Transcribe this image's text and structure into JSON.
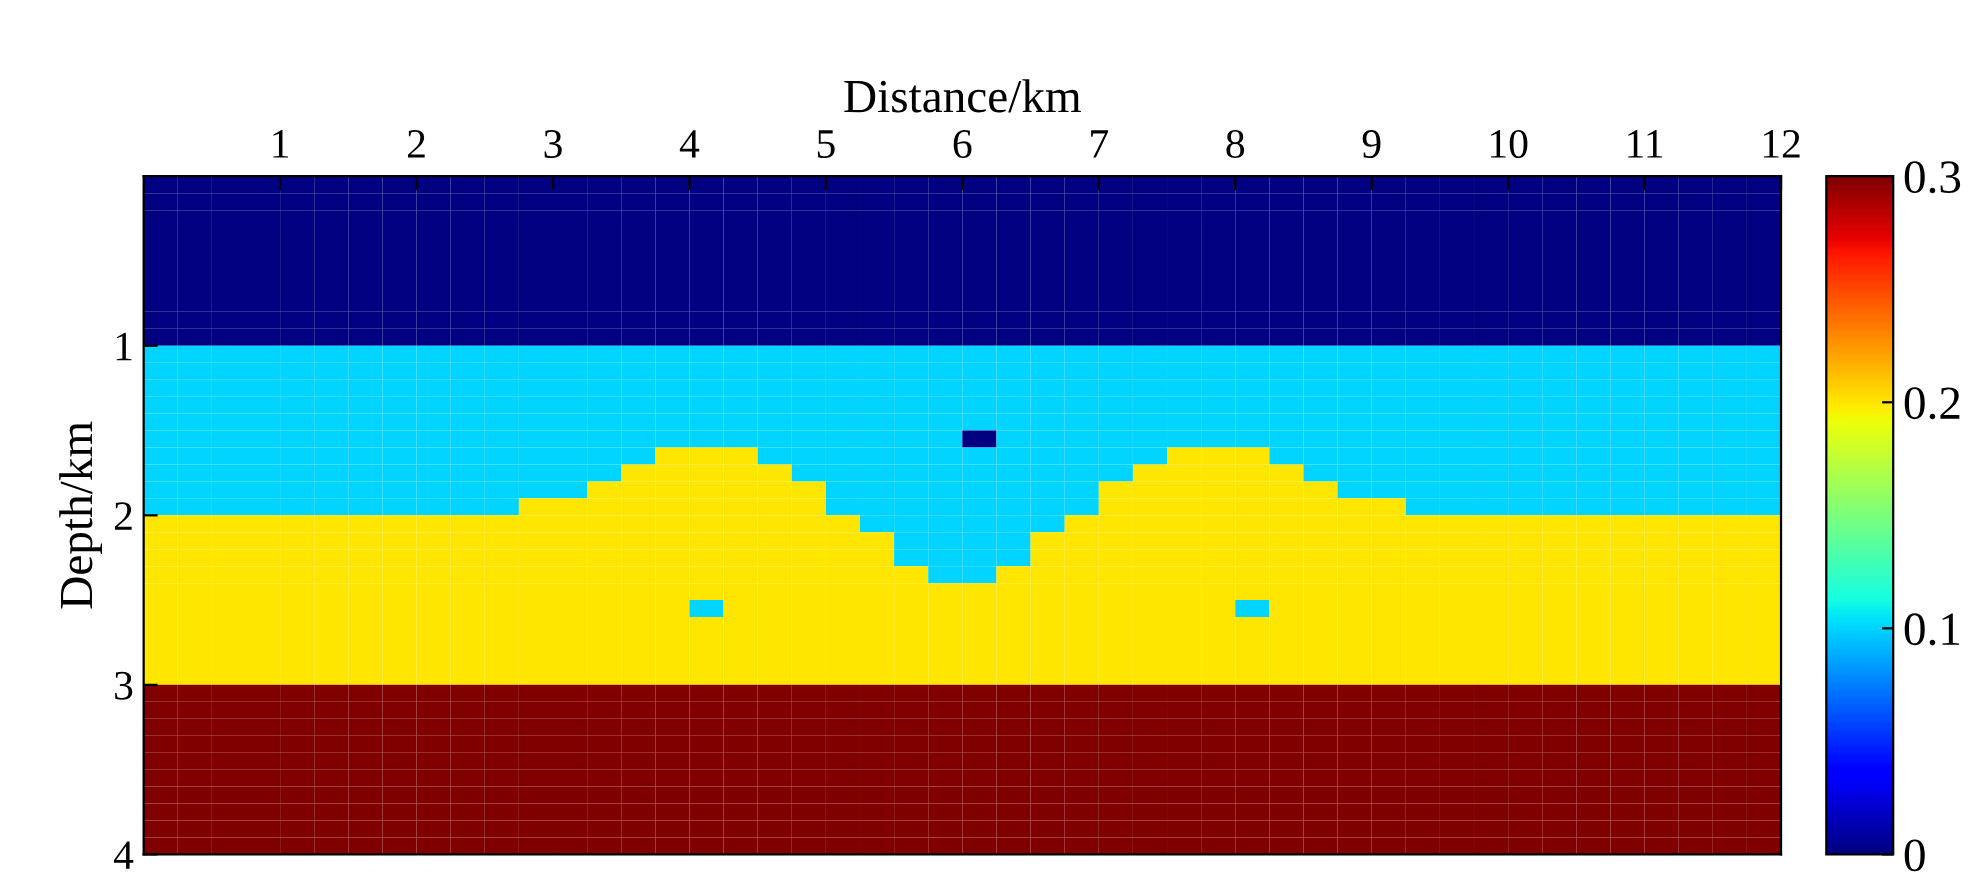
{
  "chart_data": {
    "type": "heatmap",
    "xlabel": "Distance/km",
    "ylabel": "Depth/km",
    "xlim": [
      0,
      12
    ],
    "ylim": [
      4,
      0
    ],
    "xticks": [
      1,
      2,
      3,
      4,
      5,
      6,
      7,
      8,
      9,
      10,
      11,
      12
    ],
    "yticks": [
      1,
      2,
      3,
      4
    ],
    "clim": [
      0,
      0.3
    ],
    "cticks": [
      0,
      0.1,
      0.2,
      0.3
    ],
    "cells": [
      [
        0,
        0,
        0,
        0,
        0,
        0,
        0,
        0,
        0,
        0,
        0,
        0,
        0,
        0,
        0,
        0,
        0,
        0,
        0,
        0,
        0,
        0,
        0,
        0,
        0,
        0,
        0,
        0,
        0,
        0,
        0,
        0,
        0,
        0,
        0,
        0,
        0,
        0,
        0,
        0,
        0,
        0,
        0,
        0,
        0,
        0,
        0,
        0
      ],
      [
        0,
        0,
        0,
        0,
        0,
        0,
        0,
        0,
        0,
        0,
        0,
        0,
        0,
        0,
        0,
        0,
        0,
        0,
        0,
        0,
        0,
        0,
        0,
        0,
        0,
        0,
        0,
        0,
        0,
        0,
        0,
        0,
        0,
        0,
        0,
        0,
        0,
        0,
        0,
        0,
        0,
        0,
        0,
        0,
        0,
        0,
        0,
        0
      ],
      [
        0,
        0,
        0,
        0,
        0,
        0,
        0,
        0,
        0,
        0,
        0,
        0,
        0,
        0,
        0,
        0,
        0,
        0,
        0,
        0,
        0,
        0,
        0,
        0,
        0,
        0,
        0,
        0,
        0,
        0,
        0,
        0,
        0,
        0,
        0,
        0,
        0,
        0,
        0,
        0,
        0,
        0,
        0,
        0,
        0,
        0,
        0,
        0
      ],
      [
        0,
        0,
        0,
        0,
        0,
        0,
        0,
        0,
        0,
        0,
        0,
        0,
        0,
        0,
        0,
        0,
        0,
        0,
        0,
        0,
        0,
        0,
        0,
        0,
        0,
        0,
        0,
        0,
        0,
        0,
        0,
        0,
        0,
        0,
        0,
        0,
        0,
        0,
        0,
        0,
        0,
        0,
        0,
        0,
        0,
        0,
        0,
        0
      ],
      [
        0,
        0,
        0,
        0,
        0,
        0,
        0,
        0,
        0,
        0,
        0,
        0,
        0,
        0,
        0,
        0,
        0,
        0,
        0,
        0,
        0,
        0,
        0,
        0,
        0,
        0,
        0,
        0,
        0,
        0,
        0,
        0,
        0,
        0,
        0,
        0,
        0,
        0,
        0,
        0,
        0,
        0,
        0,
        0,
        0,
        0,
        0,
        0
      ],
      [
        0,
        0,
        0,
        0,
        0,
        0,
        0,
        0,
        0,
        0,
        0,
        0,
        0,
        0,
        0,
        0,
        0,
        0,
        0,
        0,
        0,
        0,
        0,
        0,
        0,
        0,
        0,
        0,
        0,
        0,
        0,
        0,
        0,
        0,
        0,
        0,
        0,
        0,
        0,
        0,
        0,
        0,
        0,
        0,
        0,
        0,
        0,
        0
      ],
      [
        0,
        0,
        0,
        0,
        0,
        0,
        0,
        0,
        0,
        0,
        0,
        0,
        0,
        0,
        0,
        0,
        0,
        0,
        0,
        0,
        0,
        0,
        0,
        0,
        0,
        0,
        0,
        0,
        0,
        0,
        0,
        0,
        0,
        0,
        0,
        0,
        0,
        0,
        0,
        0,
        0,
        0,
        0,
        0,
        0,
        0,
        0,
        0
      ],
      [
        0,
        0,
        0,
        0,
        0,
        0,
        0,
        0,
        0,
        0,
        0,
        0,
        0,
        0,
        0,
        0,
        0,
        0,
        0,
        0,
        0,
        0,
        0,
        0,
        0,
        0,
        0,
        0,
        0,
        0,
        0,
        0,
        0,
        0,
        0,
        0,
        0,
        0,
        0,
        0,
        0,
        0,
        0,
        0,
        0,
        0,
        0,
        0
      ],
      [
        0,
        0,
        0,
        0,
        0,
        0,
        0,
        0,
        0,
        0,
        0,
        0,
        0,
        0,
        0,
        0,
        0,
        0,
        0,
        0,
        0,
        0,
        0,
        0,
        0,
        0,
        0,
        0,
        0,
        0,
        0,
        0,
        0,
        0,
        0,
        0,
        0,
        0,
        0,
        0,
        0,
        0,
        0,
        0,
        0,
        0,
        0,
        0
      ],
      [
        0,
        0,
        0,
        0,
        0,
        0,
        0,
        0,
        0,
        0,
        0,
        0,
        0,
        0,
        0,
        0,
        0,
        0,
        0,
        0,
        0,
        0,
        0,
        0,
        0,
        0,
        0,
        0,
        0,
        0,
        0,
        0,
        0,
        0,
        0,
        0,
        0,
        0,
        0,
        0,
        0,
        0,
        0,
        0,
        0,
        0,
        0,
        0
      ],
      [
        0.1,
        0.1,
        0.1,
        0.1,
        0.1,
        0.1,
        0.1,
        0.1,
        0.1,
        0.1,
        0.1,
        0.1,
        0.1,
        0.1,
        0.1,
        0.1,
        0.1,
        0.1,
        0.1,
        0.1,
        0.1,
        0.1,
        0.1,
        0.1,
        0.1,
        0.1,
        0.1,
        0.1,
        0.1,
        0.1,
        0.1,
        0.1,
        0.1,
        0.1,
        0.1,
        0.1,
        0.1,
        0.1,
        0.1,
        0.1,
        0.1,
        0.1,
        0.1,
        0.1,
        0.1,
        0.1,
        0.1,
        0.1
      ],
      [
        0.1,
        0.1,
        0.1,
        0.1,
        0.1,
        0.1,
        0.1,
        0.1,
        0.1,
        0.1,
        0.1,
        0.1,
        0.1,
        0.1,
        0.1,
        0.1,
        0.1,
        0.1,
        0.1,
        0.1,
        0.1,
        0.1,
        0.1,
        0.1,
        0.1,
        0.1,
        0.1,
        0.1,
        0.1,
        0.1,
        0.1,
        0.1,
        0.1,
        0.1,
        0.1,
        0.1,
        0.1,
        0.1,
        0.1,
        0.1,
        0.1,
        0.1,
        0.1,
        0.1,
        0.1,
        0.1,
        0.1,
        0.1
      ],
      [
        0.1,
        0.1,
        0.1,
        0.1,
        0.1,
        0.1,
        0.1,
        0.1,
        0.1,
        0.1,
        0.1,
        0.1,
        0.1,
        0.1,
        0.1,
        0.1,
        0.1,
        0.1,
        0.1,
        0.1,
        0.1,
        0.1,
        0.1,
        0.1,
        0.1,
        0.1,
        0.1,
        0.1,
        0.1,
        0.1,
        0.1,
        0.1,
        0.1,
        0.1,
        0.1,
        0.1,
        0.1,
        0.1,
        0.1,
        0.1,
        0.1,
        0.1,
        0.1,
        0.1,
        0.1,
        0.1,
        0.1,
        0.1
      ],
      [
        0.1,
        0.1,
        0.1,
        0.1,
        0.1,
        0.1,
        0.1,
        0.1,
        0.1,
        0.1,
        0.1,
        0.1,
        0.1,
        0.1,
        0.1,
        0.1,
        0.1,
        0.1,
        0.1,
        0.1,
        0.1,
        0.1,
        0.1,
        0.1,
        0.1,
        0.1,
        0.1,
        0.1,
        0.1,
        0.1,
        0.1,
        0.1,
        0.1,
        0.1,
        0.1,
        0.1,
        0.1,
        0.1,
        0.1,
        0.1,
        0.1,
        0.1,
        0.1,
        0.1,
        0.1,
        0.1,
        0.1,
        0.1
      ],
      [
        0.1,
        0.1,
        0.1,
        0.1,
        0.1,
        0.1,
        0.1,
        0.1,
        0.1,
        0.1,
        0.1,
        0.1,
        0.1,
        0.1,
        0.1,
        0.1,
        0.1,
        0.1,
        0.1,
        0.1,
        0.1,
        0.1,
        0.1,
        0.1,
        0.1,
        0.1,
        0.1,
        0.1,
        0.1,
        0.1,
        0.1,
        0.1,
        0.1,
        0.1,
        0.1,
        0.1,
        0.1,
        0.1,
        0.1,
        0.1,
        0.1,
        0.1,
        0.1,
        0.1,
        0.1,
        0.1,
        0.1,
        0.1
      ],
      [
        0.1,
        0.1,
        0.1,
        0.1,
        0.1,
        0.1,
        0.1,
        0.1,
        0.1,
        0.1,
        0.1,
        0.1,
        0.1,
        0.1,
        0.1,
        0.1,
        0.1,
        0.1,
        0.1,
        0.1,
        0.1,
        0.1,
        0.1,
        0.1,
        0,
        0.1,
        0.1,
        0.1,
        0.1,
        0.1,
        0.1,
        0.1,
        0.1,
        0.1,
        0.1,
        0.1,
        0.1,
        0.1,
        0.1,
        0.1,
        0.1,
        0.1,
        0.1,
        0.1,
        0.1,
        0.1,
        0.1,
        0.1
      ],
      [
        0.1,
        0.1,
        0.1,
        0.1,
        0.1,
        0.1,
        0.1,
        0.1,
        0.1,
        0.1,
        0.1,
        0.1,
        0.1,
        0.1,
        0.1,
        0.2,
        0.2,
        0.2,
        0.1,
        0.1,
        0.1,
        0.1,
        0.1,
        0.1,
        0.1,
        0.1,
        0.1,
        0.1,
        0.1,
        0.1,
        0.2,
        0.2,
        0.2,
        0.1,
        0.1,
        0.1,
        0.1,
        0.1,
        0.1,
        0.1,
        0.1,
        0.1,
        0.1,
        0.1,
        0.1,
        0.1,
        0.1,
        0.1
      ],
      [
        0.1,
        0.1,
        0.1,
        0.1,
        0.1,
        0.1,
        0.1,
        0.1,
        0.1,
        0.1,
        0.1,
        0.1,
        0.1,
        0.1,
        0.2,
        0.2,
        0.2,
        0.2,
        0.2,
        0.1,
        0.1,
        0.1,
        0.1,
        0.1,
        0.1,
        0.1,
        0.1,
        0.1,
        0.1,
        0.2,
        0.2,
        0.2,
        0.2,
        0.2,
        0.1,
        0.1,
        0.1,
        0.1,
        0.1,
        0.1,
        0.1,
        0.1,
        0.1,
        0.1,
        0.1,
        0.1,
        0.1,
        0.1
      ],
      [
        0.1,
        0.1,
        0.1,
        0.1,
        0.1,
        0.1,
        0.1,
        0.1,
        0.1,
        0.1,
        0.1,
        0.1,
        0.1,
        0.2,
        0.2,
        0.2,
        0.2,
        0.2,
        0.2,
        0.2,
        0.1,
        0.1,
        0.1,
        0.1,
        0.1,
        0.1,
        0.1,
        0.1,
        0.2,
        0.2,
        0.2,
        0.2,
        0.2,
        0.2,
        0.2,
        0.1,
        0.1,
        0.1,
        0.1,
        0.1,
        0.1,
        0.1,
        0.1,
        0.1,
        0.1,
        0.1,
        0.1,
        0.1
      ],
      [
        0.1,
        0.1,
        0.1,
        0.1,
        0.1,
        0.1,
        0.1,
        0.1,
        0.1,
        0.1,
        0.1,
        0.2,
        0.2,
        0.2,
        0.2,
        0.2,
        0.2,
        0.2,
        0.2,
        0.2,
        0.1,
        0.1,
        0.1,
        0.1,
        0.1,
        0.1,
        0.1,
        0.1,
        0.2,
        0.2,
        0.2,
        0.2,
        0.2,
        0.2,
        0.2,
        0.2,
        0.2,
        0.1,
        0.1,
        0.1,
        0.1,
        0.1,
        0.1,
        0.1,
        0.1,
        0.1,
        0.1,
        0.1
      ],
      [
        0.2,
        0.2,
        0.2,
        0.2,
        0.2,
        0.2,
        0.2,
        0.2,
        0.2,
        0.2,
        0.2,
        0.2,
        0.2,
        0.2,
        0.2,
        0.2,
        0.2,
        0.2,
        0.2,
        0.2,
        0.2,
        0.1,
        0.1,
        0.1,
        0.1,
        0.1,
        0.1,
        0.2,
        0.2,
        0.2,
        0.2,
        0.2,
        0.2,
        0.2,
        0.2,
        0.2,
        0.2,
        0.2,
        0.2,
        0.2,
        0.2,
        0.2,
        0.2,
        0.2,
        0.2,
        0.2,
        0.2,
        0.2
      ],
      [
        0.2,
        0.2,
        0.2,
        0.2,
        0.2,
        0.2,
        0.2,
        0.2,
        0.2,
        0.2,
        0.2,
        0.2,
        0.2,
        0.2,
        0.2,
        0.2,
        0.2,
        0.2,
        0.2,
        0.2,
        0.2,
        0.2,
        0.1,
        0.1,
        0.1,
        0.1,
        0.2,
        0.2,
        0.2,
        0.2,
        0.2,
        0.2,
        0.2,
        0.2,
        0.2,
        0.2,
        0.2,
        0.2,
        0.2,
        0.2,
        0.2,
        0.2,
        0.2,
        0.2,
        0.2,
        0.2,
        0.2,
        0.2
      ],
      [
        0.2,
        0.2,
        0.2,
        0.2,
        0.2,
        0.2,
        0.2,
        0.2,
        0.2,
        0.2,
        0.2,
        0.2,
        0.2,
        0.2,
        0.2,
        0.2,
        0.2,
        0.2,
        0.2,
        0.2,
        0.2,
        0.2,
        0.1,
        0.1,
        0.1,
        0.1,
        0.2,
        0.2,
        0.2,
        0.2,
        0.2,
        0.2,
        0.2,
        0.2,
        0.2,
        0.2,
        0.2,
        0.2,
        0.2,
        0.2,
        0.2,
        0.2,
        0.2,
        0.2,
        0.2,
        0.2,
        0.2,
        0.2
      ],
      [
        0.2,
        0.2,
        0.2,
        0.2,
        0.2,
        0.2,
        0.2,
        0.2,
        0.2,
        0.2,
        0.2,
        0.2,
        0.2,
        0.2,
        0.2,
        0.2,
        0.2,
        0.2,
        0.2,
        0.2,
        0.2,
        0.2,
        0.2,
        0.1,
        0.1,
        0.2,
        0.2,
        0.2,
        0.2,
        0.2,
        0.2,
        0.2,
        0.2,
        0.2,
        0.2,
        0.2,
        0.2,
        0.2,
        0.2,
        0.2,
        0.2,
        0.2,
        0.2,
        0.2,
        0.2,
        0.2,
        0.2,
        0.2
      ],
      [
        0.2,
        0.2,
        0.2,
        0.2,
        0.2,
        0.2,
        0.2,
        0.2,
        0.2,
        0.2,
        0.2,
        0.2,
        0.2,
        0.2,
        0.2,
        0.2,
        0.2,
        0.2,
        0.2,
        0.2,
        0.2,
        0.2,
        0.2,
        0.2,
        0.2,
        0.2,
        0.2,
        0.2,
        0.2,
        0.2,
        0.2,
        0.2,
        0.2,
        0.2,
        0.2,
        0.2,
        0.2,
        0.2,
        0.2,
        0.2,
        0.2,
        0.2,
        0.2,
        0.2,
        0.2,
        0.2,
        0.2,
        0.2
      ],
      [
        0.2,
        0.2,
        0.2,
        0.2,
        0.2,
        0.2,
        0.2,
        0.2,
        0.2,
        0.2,
        0.2,
        0.2,
        0.2,
        0.2,
        0.2,
        0.2,
        0.1,
        0.2,
        0.2,
        0.2,
        0.2,
        0.2,
        0.2,
        0.2,
        0.2,
        0.2,
        0.2,
        0.2,
        0.2,
        0.2,
        0.2,
        0.2,
        0.1,
        0.2,
        0.2,
        0.2,
        0.2,
        0.2,
        0.2,
        0.2,
        0.2,
        0.2,
        0.2,
        0.2,
        0.2,
        0.2,
        0.2,
        0.2
      ],
      [
        0.2,
        0.2,
        0.2,
        0.2,
        0.2,
        0.2,
        0.2,
        0.2,
        0.2,
        0.2,
        0.2,
        0.2,
        0.2,
        0.2,
        0.2,
        0.2,
        0.2,
        0.2,
        0.2,
        0.2,
        0.2,
        0.2,
        0.2,
        0.2,
        0.2,
        0.2,
        0.2,
        0.2,
        0.2,
        0.2,
        0.2,
        0.2,
        0.2,
        0.2,
        0.2,
        0.2,
        0.2,
        0.2,
        0.2,
        0.2,
        0.2,
        0.2,
        0.2,
        0.2,
        0.2,
        0.2,
        0.2,
        0.2
      ],
      [
        0.2,
        0.2,
        0.2,
        0.2,
        0.2,
        0.2,
        0.2,
        0.2,
        0.2,
        0.2,
        0.2,
        0.2,
        0.2,
        0.2,
        0.2,
        0.2,
        0.2,
        0.2,
        0.2,
        0.2,
        0.2,
        0.2,
        0.2,
        0.2,
        0.2,
        0.2,
        0.2,
        0.2,
        0.2,
        0.2,
        0.2,
        0.2,
        0.2,
        0.2,
        0.2,
        0.2,
        0.2,
        0.2,
        0.2,
        0.2,
        0.2,
        0.2,
        0.2,
        0.2,
        0.2,
        0.2,
        0.2,
        0.2
      ],
      [
        0.2,
        0.2,
        0.2,
        0.2,
        0.2,
        0.2,
        0.2,
        0.2,
        0.2,
        0.2,
        0.2,
        0.2,
        0.2,
        0.2,
        0.2,
        0.2,
        0.2,
        0.2,
        0.2,
        0.2,
        0.2,
        0.2,
        0.2,
        0.2,
        0.2,
        0.2,
        0.2,
        0.2,
        0.2,
        0.2,
        0.2,
        0.2,
        0.2,
        0.2,
        0.2,
        0.2,
        0.2,
        0.2,
        0.2,
        0.2,
        0.2,
        0.2,
        0.2,
        0.2,
        0.2,
        0.2,
        0.2,
        0.2
      ],
      [
        0.2,
        0.2,
        0.2,
        0.2,
        0.2,
        0.2,
        0.2,
        0.2,
        0.2,
        0.2,
        0.2,
        0.2,
        0.2,
        0.2,
        0.2,
        0.2,
        0.2,
        0.2,
        0.2,
        0.2,
        0.2,
        0.2,
        0.2,
        0.2,
        0.2,
        0.2,
        0.2,
        0.2,
        0.2,
        0.2,
        0.2,
        0.2,
        0.2,
        0.2,
        0.2,
        0.2,
        0.2,
        0.2,
        0.2,
        0.2,
        0.2,
        0.2,
        0.2,
        0.2,
        0.2,
        0.2,
        0.2,
        0.2
      ],
      [
        0.3,
        0.3,
        0.3,
        0.3,
        0.3,
        0.3,
        0.3,
        0.3,
        0.3,
        0.3,
        0.3,
        0.3,
        0.3,
        0.3,
        0.3,
        0.3,
        0.3,
        0.3,
        0.3,
        0.3,
        0.3,
        0.3,
        0.3,
        0.3,
        0.3,
        0.3,
        0.3,
        0.3,
        0.3,
        0.3,
        0.3,
        0.3,
        0.3,
        0.3,
        0.3,
        0.3,
        0.3,
        0.3,
        0.3,
        0.3,
        0.3,
        0.3,
        0.3,
        0.3,
        0.3,
        0.3,
        0.3,
        0.3
      ],
      [
        0.3,
        0.3,
        0.3,
        0.3,
        0.3,
        0.3,
        0.3,
        0.3,
        0.3,
        0.3,
        0.3,
        0.3,
        0.3,
        0.3,
        0.3,
        0.3,
        0.3,
        0.3,
        0.3,
        0.3,
        0.3,
        0.3,
        0.3,
        0.3,
        0.3,
        0.3,
        0.3,
        0.3,
        0.3,
        0.3,
        0.3,
        0.3,
        0.3,
        0.3,
        0.3,
        0.3,
        0.3,
        0.3,
        0.3,
        0.3,
        0.3,
        0.3,
        0.3,
        0.3,
        0.3,
        0.3,
        0.3,
        0.3
      ],
      [
        0.3,
        0.3,
        0.3,
        0.3,
        0.3,
        0.3,
        0.3,
        0.3,
        0.3,
        0.3,
        0.3,
        0.3,
        0.3,
        0.3,
        0.3,
        0.3,
        0.3,
        0.3,
        0.3,
        0.3,
        0.3,
        0.3,
        0.3,
        0.3,
        0.3,
        0.3,
        0.3,
        0.3,
        0.3,
        0.3,
        0.3,
        0.3,
        0.3,
        0.3,
        0.3,
        0.3,
        0.3,
        0.3,
        0.3,
        0.3,
        0.3,
        0.3,
        0.3,
        0.3,
        0.3,
        0.3,
        0.3,
        0.3
      ],
      [
        0.3,
        0.3,
        0.3,
        0.3,
        0.3,
        0.3,
        0.3,
        0.3,
        0.3,
        0.3,
        0.3,
        0.3,
        0.3,
        0.3,
        0.3,
        0.3,
        0.3,
        0.3,
        0.3,
        0.3,
        0.3,
        0.3,
        0.3,
        0.3,
        0.3,
        0.3,
        0.3,
        0.3,
        0.3,
        0.3,
        0.3,
        0.3,
        0.3,
        0.3,
        0.3,
        0.3,
        0.3,
        0.3,
        0.3,
        0.3,
        0.3,
        0.3,
        0.3,
        0.3,
        0.3,
        0.3,
        0.3,
        0.3
      ],
      [
        0.3,
        0.3,
        0.3,
        0.3,
        0.3,
        0.3,
        0.3,
        0.3,
        0.3,
        0.3,
        0.3,
        0.3,
        0.3,
        0.3,
        0.3,
        0.3,
        0.3,
        0.3,
        0.3,
        0.3,
        0.3,
        0.3,
        0.3,
        0.3,
        0.3,
        0.3,
        0.3,
        0.3,
        0.3,
        0.3,
        0.3,
        0.3,
        0.3,
        0.3,
        0.3,
        0.3,
        0.3,
        0.3,
        0.3,
        0.3,
        0.3,
        0.3,
        0.3,
        0.3,
        0.3,
        0.3,
        0.3,
        0.3
      ],
      [
        0.3,
        0.3,
        0.3,
        0.3,
        0.3,
        0.3,
        0.3,
        0.3,
        0.3,
        0.3,
        0.3,
        0.3,
        0.3,
        0.3,
        0.3,
        0.3,
        0.3,
        0.3,
        0.3,
        0.3,
        0.3,
        0.3,
        0.3,
        0.3,
        0.3,
        0.3,
        0.3,
        0.3,
        0.3,
        0.3,
        0.3,
        0.3,
        0.3,
        0.3,
        0.3,
        0.3,
        0.3,
        0.3,
        0.3,
        0.3,
        0.3,
        0.3,
        0.3,
        0.3,
        0.3,
        0.3,
        0.3,
        0.3
      ],
      [
        0.3,
        0.3,
        0.3,
        0.3,
        0.3,
        0.3,
        0.3,
        0.3,
        0.3,
        0.3,
        0.3,
        0.3,
        0.3,
        0.3,
        0.3,
        0.3,
        0.3,
        0.3,
        0.3,
        0.3,
        0.3,
        0.3,
        0.3,
        0.3,
        0.3,
        0.3,
        0.3,
        0.3,
        0.3,
        0.3,
        0.3,
        0.3,
        0.3,
        0.3,
        0.3,
        0.3,
        0.3,
        0.3,
        0.3,
        0.3,
        0.3,
        0.3,
        0.3,
        0.3,
        0.3,
        0.3,
        0.3,
        0.3
      ],
      [
        0.3,
        0.3,
        0.3,
        0.3,
        0.3,
        0.3,
        0.3,
        0.3,
        0.3,
        0.3,
        0.3,
        0.3,
        0.3,
        0.3,
        0.3,
        0.3,
        0.3,
        0.3,
        0.3,
        0.3,
        0.3,
        0.3,
        0.3,
        0.3,
        0.3,
        0.3,
        0.3,
        0.3,
        0.3,
        0.3,
        0.3,
        0.3,
        0.3,
        0.3,
        0.3,
        0.3,
        0.3,
        0.3,
        0.3,
        0.3,
        0.3,
        0.3,
        0.3,
        0.3,
        0.3,
        0.3,
        0.3,
        0.3
      ],
      [
        0.3,
        0.3,
        0.3,
        0.3,
        0.3,
        0.3,
        0.3,
        0.3,
        0.3,
        0.3,
        0.3,
        0.3,
        0.3,
        0.3,
        0.3,
        0.3,
        0.3,
        0.3,
        0.3,
        0.3,
        0.3,
        0.3,
        0.3,
        0.3,
        0.3,
        0.3,
        0.3,
        0.3,
        0.3,
        0.3,
        0.3,
        0.3,
        0.3,
        0.3,
        0.3,
        0.3,
        0.3,
        0.3,
        0.3,
        0.3,
        0.3,
        0.3,
        0.3,
        0.3,
        0.3,
        0.3,
        0.3,
        0.3
      ],
      [
        0.3,
        0.3,
        0.3,
        0.3,
        0.3,
        0.3,
        0.3,
        0.3,
        0.3,
        0.3,
        0.3,
        0.3,
        0.3,
        0.3,
        0.3,
        0.3,
        0.3,
        0.3,
        0.3,
        0.3,
        0.3,
        0.3,
        0.3,
        0.3,
        0.3,
        0.3,
        0.3,
        0.3,
        0.3,
        0.3,
        0.3,
        0.3,
        0.3,
        0.3,
        0.3,
        0.3,
        0.3,
        0.3,
        0.3,
        0.3,
        0.3,
        0.3,
        0.3,
        0.3,
        0.3,
        0.3,
        0.3,
        0.3
      ]
    ]
  }
}
